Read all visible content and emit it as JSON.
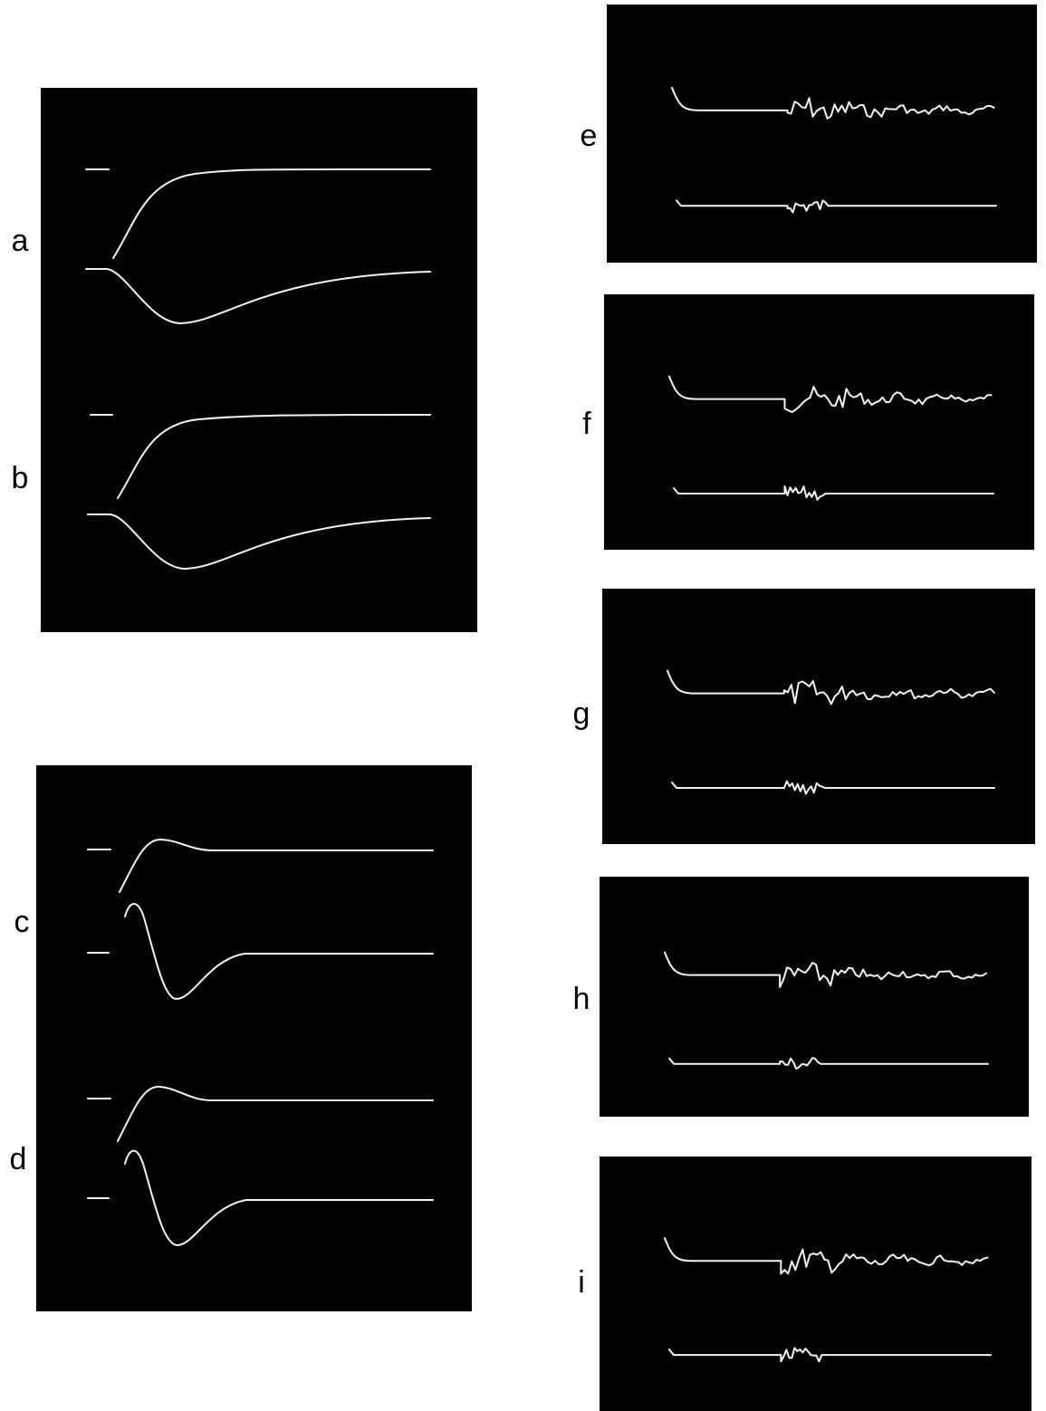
{
  "panels": [
    {
      "label": "a"
    },
    {
      "label": "b"
    },
    {
      "label": "c"
    },
    {
      "label": "d"
    },
    {
      "label": "e"
    },
    {
      "label": "f"
    },
    {
      "label": "g"
    },
    {
      "label": "h"
    },
    {
      "label": "i"
    }
  ]
}
